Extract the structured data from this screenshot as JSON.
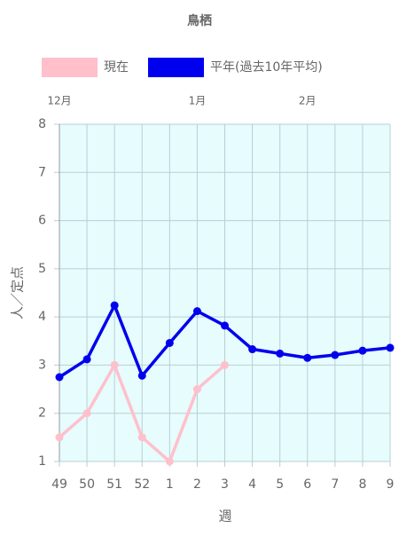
{
  "chart_data": {
    "type": "line",
    "title": "鳥栖",
    "month_labels": [
      "12月",
      "1月",
      "2月"
    ],
    "categories": [
      "49",
      "50",
      "51",
      "52",
      "1",
      "2",
      "3",
      "4",
      "5",
      "6",
      "7",
      "8",
      "9"
    ],
    "series": [
      {
        "name": "現在",
        "color": "#ffc0cb",
        "values": [
          1.5,
          2,
          3,
          1.5,
          1,
          2.5,
          3,
          null,
          null,
          null,
          null,
          null,
          null
        ]
      },
      {
        "name": "平年(過去10年平均)",
        "color": "#0000ee",
        "values": [
          2.75,
          3.12,
          4.24,
          2.78,
          3.46,
          4.12,
          3.82,
          3.33,
          3.24,
          3.15,
          3.21,
          3.3,
          3.36
        ]
      }
    ],
    "ylim": [
      1,
      8
    ],
    "yticks": [
      1,
      2,
      3,
      4,
      5,
      6,
      7,
      8
    ],
    "grid": true,
    "x_label": "週",
    "y_label": "人／定点"
  }
}
